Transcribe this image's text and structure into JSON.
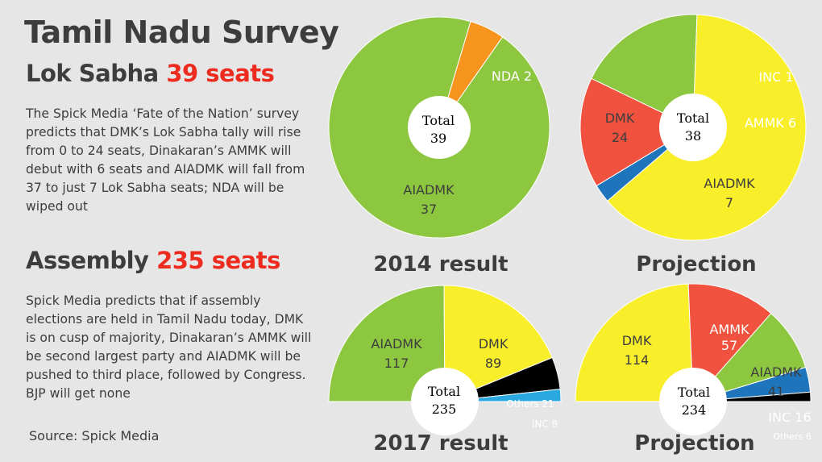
{
  "title": "Tamil Nadu Survey",
  "lok_sabha": {
    "heading_prefix": "Lok Sabha",
    "heading_accent": "39 seats",
    "description": "The Spick Media ‘Fate of the Nation’ survey predicts that DMK’s Lok Sabha tally will rise from 0 to 24 seats, Dinakaran’s AMMK will debut with 6 seats and AIADMK will fall from 37 to just 7 Lok Sabha seats; NDA will be wiped out"
  },
  "assembly": {
    "heading_prefix": "Assembly",
    "heading_accent": "235 seats",
    "description": "Spick Media predicts that if assembly elections are held in Tamil Nadu today, DMK is on cusp of majority, Dinakaran’s AMMK will be second largest party and AIADMK will be pushed to third place, followed by Congress. BJP will get none"
  },
  "source": "Source: Spick Media",
  "colors": {
    "accent": "#ee2b1f",
    "AIADMK": "#8dc63f",
    "DMK": "#f8ef2a",
    "NDA": "#f7941d",
    "AMMK": "#f1523f",
    "INC": "#1f75bb",
    "Others": "#000000",
    "INC_2017": "#29a9e0"
  },
  "chart_data": [
    {
      "type": "pie",
      "title": "2014 result",
      "total_label": "Total",
      "total_value": "39",
      "slices": [
        {
          "name": "AIADMK",
          "value": 37,
          "label": "AIADMK",
          "value_label": "37",
          "color": "#8dc63f"
        },
        {
          "name": "NDA",
          "value": 2,
          "label": "NDA 2",
          "color": "#f7941d"
        }
      ]
    },
    {
      "type": "pie",
      "title": "Projection",
      "total_label": "Total",
      "total_value": "38",
      "slices": [
        {
          "name": "DMK",
          "value": 24,
          "label": "DMK",
          "value_label": "24",
          "color": "#f8ef2a"
        },
        {
          "name": "INC",
          "value": 1,
          "label": "INC 1",
          "color": "#1f75bb"
        },
        {
          "name": "AMMK",
          "value": 6,
          "label": "AMMK 6",
          "color": "#f1523f"
        },
        {
          "name": "AIADMK",
          "value": 7,
          "label": "AIADMK",
          "value_label": "7",
          "color": "#8dc63f"
        }
      ]
    },
    {
      "type": "pie",
      "title": "2017 result",
      "total_label": "Total",
      "total_value": "235",
      "slices": [
        {
          "name": "AIADMK",
          "value": 117,
          "label": "AIADMK",
          "value_label": "117",
          "color": "#8dc63f"
        },
        {
          "name": "DMK",
          "value": 89,
          "label": "DMK",
          "value_label": "89",
          "color": "#f8ef2a"
        },
        {
          "name": "Others",
          "value": 21,
          "label": "Others 21",
          "color": "#000000"
        },
        {
          "name": "INC",
          "value": 8,
          "label": "INC 8",
          "color": "#29a9e0"
        }
      ]
    },
    {
      "type": "pie",
      "title": "Projection",
      "total_label": "Total",
      "total_value": "234",
      "slices": [
        {
          "name": "DMK",
          "value": 114,
          "label": "DMK",
          "value_label": "114",
          "color": "#f8ef2a"
        },
        {
          "name": "AMMK",
          "value": 57,
          "label": "AMMK",
          "value_label": "57",
          "color": "#f1523f"
        },
        {
          "name": "AIADMK",
          "value": 41,
          "label": "AIADMK",
          "value_label": "41",
          "color": "#8dc63f"
        },
        {
          "name": "INC",
          "value": 16,
          "label": "INC 16",
          "color": "#1f75bb"
        },
        {
          "name": "Others",
          "value": 6,
          "label": "Others 6",
          "color": "#000000"
        }
      ]
    }
  ]
}
